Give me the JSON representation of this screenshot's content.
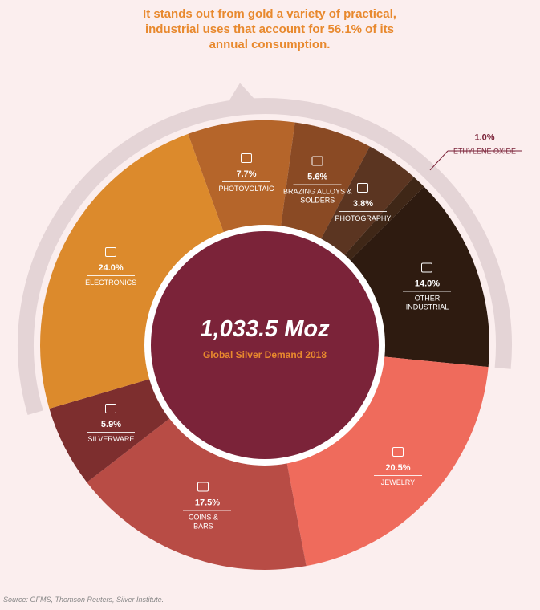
{
  "chart_data": {
    "type": "pie",
    "annotation": "It stands out from gold a variety of practical, industrial uses that account for 56.1% of its annual consumption.",
    "center_title": "1,033.5 Moz",
    "center_subtitle": "Global Silver Demand 2018",
    "source": "Source: GFMS, Thomson Reuters, Silver Institute.",
    "categories": [
      "PHOTOVOLTAIC",
      "BRAZING ALLOYS & SOLDERS",
      "PHOTOGRAPHY",
      "ETHYLENE OXIDE",
      "OTHER INDUSTRIAL",
      "JEWELRY",
      "COINS & BARS",
      "SILVERWARE",
      "ELECTRONICS"
    ],
    "values": [
      7.7,
      5.6,
      3.8,
      1.0,
      14.0,
      20.5,
      17.5,
      5.9,
      24.0
    ],
    "value_labels": [
      "7.7%",
      "5.6%",
      "3.8%",
      "1.0%",
      "14.0%",
      "20.5%",
      "17.5%",
      "5.9%",
      "24.0%"
    ],
    "colors": [
      "#b5652a",
      "#8a4a24",
      "#5b3521",
      "#3f2717",
      "#2e1b10",
      "#ef6b5c",
      "#b84c45",
      "#7d2e2e",
      "#dc8a2c"
    ]
  }
}
